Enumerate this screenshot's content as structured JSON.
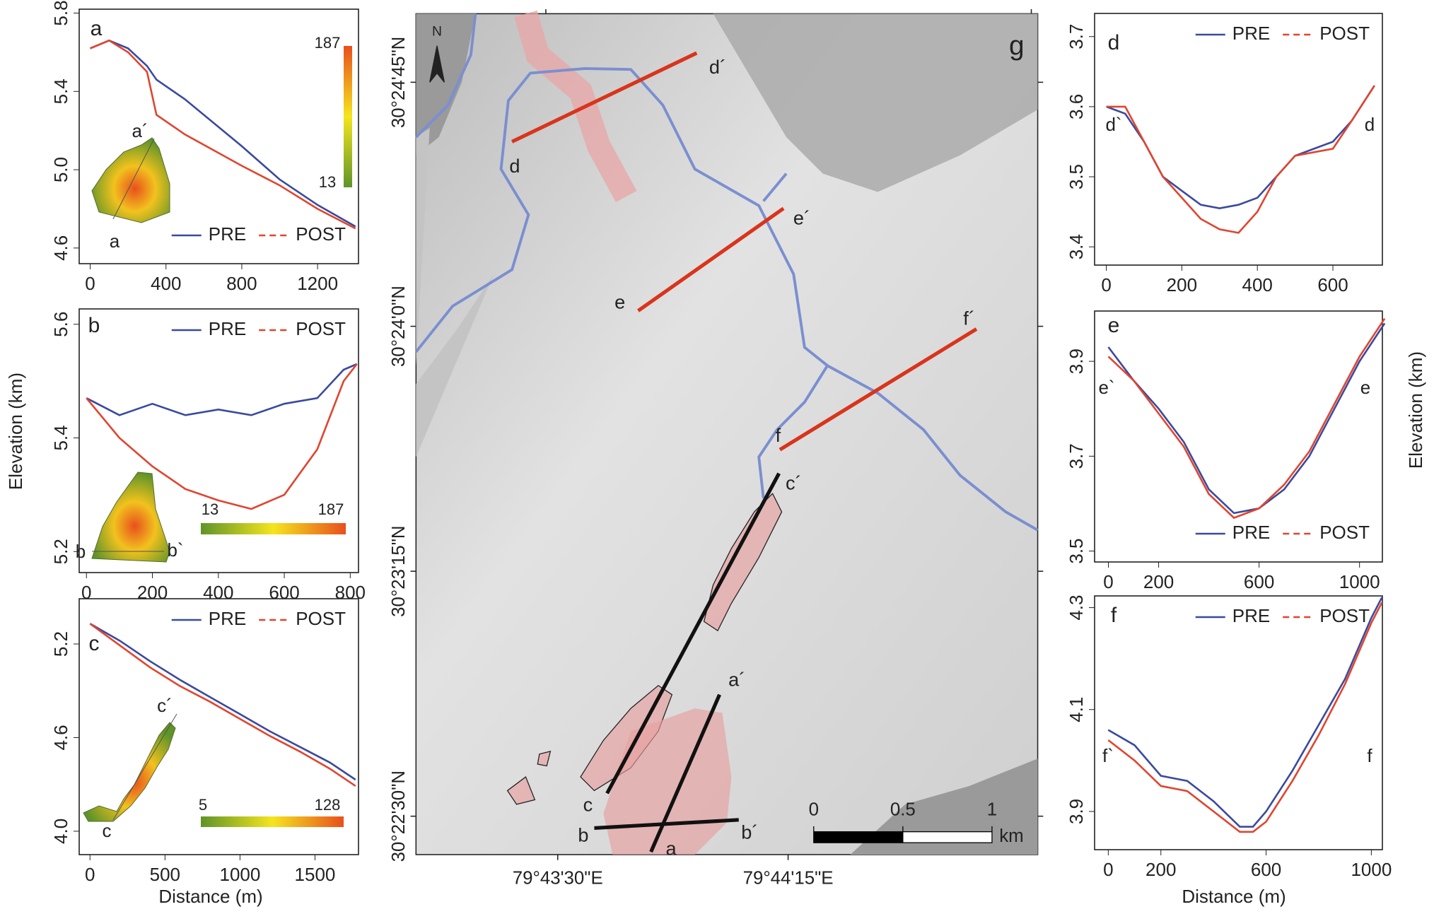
{
  "figure": {
    "y_label": "Elevation (km)",
    "x_label": "Distance (m)"
  },
  "chart_data": [
    {
      "type": "line",
      "panel_label": "a",
      "x": [
        0,
        100,
        200,
        300,
        350,
        500,
        800,
        1000,
        1200,
        1400
      ],
      "series": [
        {
          "name": "PRE",
          "color": "#3a4a9f",
          "linestyle": "solid",
          "values": [
            5.62,
            5.66,
            5.62,
            5.53,
            5.46,
            5.36,
            5.12,
            4.95,
            4.82,
            4.71
          ]
        },
        {
          "name": "POST",
          "color": "#e0452f",
          "linestyle": "dashed",
          "values": [
            5.62,
            5.66,
            5.6,
            5.5,
            5.28,
            5.18,
            5.02,
            4.92,
            4.8,
            4.7
          ]
        }
      ],
      "xlim": [
        -58,
        1416
      ],
      "ylim": [
        4.52,
        5.82
      ],
      "xticks": [
        0,
        400,
        800,
        1200
      ],
      "yticks": [
        4.6,
        {
          "value": 5,
          "label": "5.0"
        },
        5.4,
        5.8
      ],
      "legend": "lower right",
      "annotations": [
        "a´",
        "a"
      ],
      "colorbar": {
        "min": 13,
        "max": 187
      }
    },
    {
      "type": "line",
      "panel_label": "b",
      "x": [
        0,
        100,
        200,
        300,
        400,
        500,
        600,
        700,
        780,
        820
      ],
      "series": [
        {
          "name": "PRE",
          "color": "#3a4a9f",
          "linestyle": "solid",
          "values": [
            5.47,
            5.44,
            5.46,
            5.44,
            5.45,
            5.44,
            5.46,
            5.47,
            5.52,
            5.53
          ]
        },
        {
          "name": "POST",
          "color": "#e0452f",
          "linestyle": "dashed",
          "values": [
            5.47,
            5.4,
            5.35,
            5.31,
            5.29,
            5.275,
            5.3,
            5.38,
            5.5,
            5.53
          ]
        }
      ],
      "xlim": [
        -22,
        825
      ],
      "ylim": [
        5.163,
        5.627
      ],
      "xticks": [
        0,
        200,
        400,
        600,
        800
      ],
      "yticks": [
        5.2,
        5.4,
        5.6
      ],
      "legend": "upper right",
      "annotations": [
        "b",
        "b`"
      ],
      "colorbar": {
        "min": 13,
        "max": 187
      }
    },
    {
      "type": "line",
      "panel_label": "c",
      "x": [
        0,
        200,
        400,
        600,
        800,
        1000,
        1200,
        1400,
        1600,
        1770
      ],
      "series": [
        {
          "name": "PRE",
          "color": "#3a4a9f",
          "linestyle": "solid",
          "values": [
            5.33,
            5.22,
            5.09,
            4.97,
            4.86,
            4.75,
            4.64,
            4.54,
            4.44,
            4.33
          ]
        },
        {
          "name": "POST",
          "color": "#e0452f",
          "linestyle": "dashed",
          "values": [
            5.33,
            5.19,
            5.05,
            4.93,
            4.83,
            4.72,
            4.61,
            4.51,
            4.4,
            4.29
          ]
        }
      ],
      "xlim": [
        -72,
        1790
      ],
      "ylim": [
        3.85,
        5.49
      ],
      "xticks": [
        0,
        500,
        1000,
        1500
      ],
      "yticks": [
        {
          "value": 4,
          "label": "4.0"
        },
        4.6,
        5.2
      ],
      "legend": "upper right",
      "annotations": [
        "c´",
        "c"
      ],
      "colorbar": {
        "min": 5,
        "max": 128
      }
    },
    {
      "type": "line",
      "panel_label": "d",
      "x": [
        0,
        50,
        100,
        150,
        200,
        250,
        300,
        350,
        400,
        450,
        500,
        550,
        600,
        650,
        710
      ],
      "series": [
        {
          "name": "PRE",
          "color": "#3a4a9f",
          "linestyle": "solid",
          "values": [
            3.6,
            3.59,
            3.55,
            3.5,
            3.48,
            3.46,
            3.455,
            3.46,
            3.47,
            3.5,
            3.53,
            3.54,
            3.55,
            3.58,
            3.63
          ]
        },
        {
          "name": "POST",
          "color": "#e0452f",
          "linestyle": "dashed",
          "values": [
            3.6,
            3.6,
            3.55,
            3.5,
            3.47,
            3.44,
            3.425,
            3.42,
            3.45,
            3.5,
            3.53,
            3.535,
            3.54,
            3.58,
            3.63
          ]
        }
      ],
      "xlim": [
        -31,
        731
      ],
      "ylim": [
        3.374,
        3.733
      ],
      "xticks": [
        0,
        200,
        400,
        600
      ],
      "yticks": [
        3.4,
        3.5,
        3.6,
        3.7
      ],
      "legend": "upper right",
      "annotations": [
        "d`",
        "d"
      ]
    },
    {
      "type": "line",
      "panel_label": "e",
      "x": [
        0,
        100,
        200,
        300,
        400,
        500,
        600,
        700,
        800,
        900,
        1000,
        1100
      ],
      "series": [
        {
          "name": "PRE",
          "color": "#3a4a9f",
          "linestyle": "solid",
          "values": [
            3.93,
            3.86,
            3.8,
            3.73,
            3.63,
            3.58,
            3.59,
            3.63,
            3.7,
            3.8,
            3.9,
            3.98
          ]
        },
        {
          "name": "POST",
          "color": "#e0452f",
          "linestyle": "dashed",
          "values": [
            3.91,
            3.86,
            3.79,
            3.72,
            3.62,
            3.57,
            3.59,
            3.64,
            3.71,
            3.81,
            3.91,
            3.99
          ]
        }
      ],
      "xlim": [
        -55,
        1091
      ],
      "ylim": [
        3.477,
        4.006
      ],
      "xticks": [
        0,
        200,
        600,
        1000
      ],
      "yticks": [
        3.5,
        3.7,
        3.9
      ],
      "legend": "lower right",
      "annotations": [
        "e`",
        "e"
      ]
    },
    {
      "type": "line",
      "panel_label": "f",
      "x": [
        0,
        100,
        200,
        300,
        400,
        500,
        550,
        600,
        700,
        800,
        900,
        1000,
        1040
      ],
      "series": [
        {
          "name": "PRE",
          "color": "#3a4a9f",
          "linestyle": "solid",
          "values": [
            4.06,
            4.03,
            3.97,
            3.96,
            3.92,
            3.87,
            3.87,
            3.9,
            3.98,
            4.07,
            4.16,
            4.28,
            4.32
          ]
        },
        {
          "name": "POST",
          "color": "#e0452f",
          "linestyle": "dashed",
          "values": [
            4.04,
            4.0,
            3.95,
            3.94,
            3.9,
            3.86,
            3.86,
            3.88,
            3.96,
            4.05,
            4.15,
            4.27,
            4.31
          ]
        }
      ],
      "xlim": [
        -52,
        1042
      ],
      "ylim": [
        3.825,
        4.323
      ],
      "xticks": [
        0,
        200,
        600,
        1000
      ],
      "yticks": [
        3.9,
        4.1,
        4.3
      ],
      "legend": "upper right",
      "annotations": [
        "f`",
        "f"
      ]
    }
  ],
  "map": {
    "panel_label": "g",
    "north": "N",
    "lat_labels": [
      "30°24'45\"N",
      "30°24'0\"N",
      "30°23'15\"N",
      "30°22'30\"N"
    ],
    "lon_labels": [
      "79°43'30\"E",
      "79°44'15\"E"
    ],
    "scale_bar": {
      "ticks": [
        0,
        0.5,
        1
      ],
      "unit": "km"
    },
    "profile_labels": [
      "d´",
      "d",
      "e´",
      "e",
      "f´",
      "f",
      "c´",
      "c",
      "a´",
      "a",
      "b",
      "b´"
    ]
  }
}
